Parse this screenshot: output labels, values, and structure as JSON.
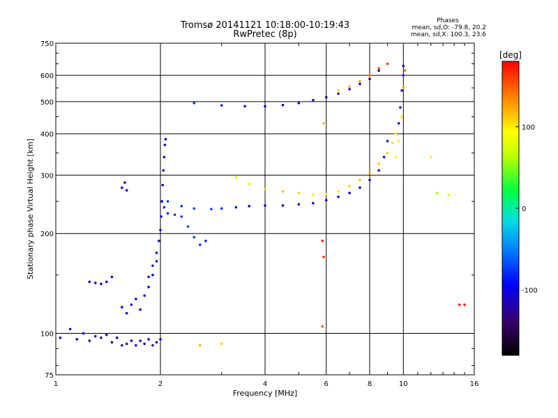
{
  "chart_data": {
    "type": "scatter",
    "title": "Tromsø 20141121 10:18:00-10:19:43",
    "subtitle": "RwPretec (8p)",
    "xlabel": "Frequency [MHz]",
    "ylabel": "Stationary phase Virtual Height [km]",
    "x_scale": "log",
    "y_scale": "log",
    "xlim": [
      1,
      16
    ],
    "ylim": [
      75,
      750
    ],
    "grid": true,
    "x_ticks": [
      1,
      2,
      4,
      6,
      8,
      10,
      16
    ],
    "x_tick_labels": [
      "1",
      "2",
      "4",
      "6",
      "8",
      "10",
      "16"
    ],
    "y_ticks": [
      75,
      100,
      200,
      300,
      400,
      500,
      600,
      750
    ],
    "y_tick_labels": [
      "75",
      "100",
      "200",
      "300",
      "400",
      "500",
      "600",
      "750"
    ],
    "phase_legend": {
      "title": "Phases",
      "line1": "mean, sd,O: -79.8, 20.2",
      "line2": "mean, sd,X: 100.3, 23.6"
    },
    "colorbar": {
      "label": "[deg]",
      "range": [
        -180,
        180
      ],
      "ticks": [
        100,
        0,
        -100
      ],
      "tick_labels": [
        "100",
        "0",
        "-100"
      ]
    },
    "series": [
      {
        "points": [
          [
            1.03,
            97,
            -120
          ],
          [
            1.1,
            103,
            -110
          ],
          [
            1.15,
            96,
            -115
          ],
          [
            1.2,
            100,
            -105
          ],
          [
            1.25,
            95,
            -125
          ],
          [
            1.3,
            98,
            -110
          ],
          [
            1.35,
            97,
            -120
          ],
          [
            1.4,
            99,
            -100
          ],
          [
            1.45,
            94,
            -130
          ],
          [
            1.5,
            97,
            -115
          ],
          [
            1.55,
            92,
            -120
          ],
          [
            1.6,
            93,
            -110
          ],
          [
            1.65,
            95,
            -125
          ],
          [
            1.7,
            92,
            -105
          ],
          [
            1.75,
            95,
            -118
          ],
          [
            1.8,
            93,
            -112
          ],
          [
            1.85,
            96,
            -108
          ],
          [
            1.9,
            92,
            -122
          ],
          [
            1.95,
            94,
            -115
          ],
          [
            2.0,
            96,
            -110
          ]
        ]
      },
      {
        "points": [
          [
            1.25,
            143,
            -105
          ],
          [
            1.3,
            142,
            -110
          ],
          [
            1.35,
            141,
            -108
          ],
          [
            1.4,
            143,
            -115
          ],
          [
            1.45,
            148,
            -112
          ],
          [
            1.55,
            120,
            -95
          ],
          [
            1.6,
            115,
            -100
          ],
          [
            1.65,
            122,
            -110
          ],
          [
            1.7,
            127,
            -100
          ],
          [
            1.75,
            118,
            -105
          ],
          [
            1.8,
            130,
            -98
          ],
          [
            1.85,
            138,
            -100
          ],
          [
            1.9,
            150,
            -95
          ],
          [
            1.95,
            165,
            -92
          ]
        ]
      },
      {
        "points": [
          [
            1.55,
            275,
            -110
          ],
          [
            1.58,
            285,
            -115
          ],
          [
            1.6,
            270,
            -105
          ]
        ]
      },
      {
        "points": [
          [
            1.85,
            148,
            -85
          ],
          [
            1.9,
            160,
            -88
          ],
          [
            1.95,
            175,
            -90
          ],
          [
            1.98,
            190,
            -92
          ],
          [
            2.0,
            205,
            -95
          ],
          [
            2.01,
            225,
            -98
          ],
          [
            2.02,
            250,
            -100
          ],
          [
            2.03,
            280,
            -102
          ],
          [
            2.04,
            310,
            -105
          ],
          [
            2.05,
            340,
            -108
          ],
          [
            2.06,
            370,
            -110
          ],
          [
            2.07,
            385,
            -112
          ]
        ]
      },
      {
        "points": [
          [
            2.05,
            240,
            -85
          ],
          [
            2.1,
            230,
            -80
          ],
          [
            2.2,
            228,
            -78
          ],
          [
            2.3,
            225,
            -75
          ],
          [
            2.4,
            210,
            -72
          ],
          [
            2.5,
            195,
            -75
          ],
          [
            2.6,
            185,
            -78
          ],
          [
            2.7,
            190,
            -80
          ]
        ]
      },
      {
        "points": [
          [
            2.1,
            250,
            -75
          ],
          [
            2.3,
            242,
            -72
          ],
          [
            2.5,
            238,
            -70
          ],
          [
            2.8,
            237,
            -73
          ],
          [
            3.0,
            238,
            -80
          ],
          [
            3.3,
            240,
            -95
          ],
          [
            3.6,
            242,
            -115
          ],
          [
            4.0,
            243,
            -120
          ],
          [
            4.5,
            243,
            -118
          ],
          [
            5.0,
            245,
            -115
          ],
          [
            5.5,
            247,
            -112
          ],
          [
            6.0,
            252,
            -110
          ],
          [
            6.5,
            258,
            -112
          ],
          [
            7.0,
            265,
            -115
          ],
          [
            7.5,
            275,
            -118
          ],
          [
            8.0,
            290,
            -112
          ],
          [
            8.5,
            310,
            -108
          ],
          [
            8.8,
            340,
            -105
          ],
          [
            9.0,
            380,
            -110
          ]
        ]
      },
      {
        "points": [
          [
            3.3,
            295,
            80
          ],
          [
            3.6,
            282,
            95
          ],
          [
            4.0,
            272,
            110
          ],
          [
            4.5,
            268,
            115
          ],
          [
            5.0,
            265,
            110
          ],
          [
            5.5,
            262,
            100
          ],
          [
            6.0,
            263,
            95
          ],
          [
            6.5,
            268,
            100
          ],
          [
            7.0,
            278,
            110
          ],
          [
            7.5,
            290,
            115
          ],
          [
            8.0,
            305,
            120
          ],
          [
            8.5,
            325,
            115
          ],
          [
            9.0,
            350,
            110
          ],
          [
            9.3,
            375,
            105
          ],
          [
            9.5,
            400,
            100
          ]
        ]
      },
      {
        "points": [
          [
            9.7,
            430,
            -110
          ],
          [
            9.8,
            480,
            -115
          ],
          [
            9.9,
            540,
            -120
          ],
          [
            10.0,
            600,
            -115
          ],
          [
            10.0,
            640,
            -110
          ]
        ]
      },
      {
        "points": [
          [
            9.5,
            340,
            90
          ],
          [
            9.7,
            380,
            100
          ],
          [
            9.9,
            450,
            110
          ],
          [
            10.0,
            550,
            120
          ],
          [
            10.1,
            620,
            140
          ]
        ]
      },
      {
        "points": [
          [
            2.5,
            495,
            -80
          ],
          [
            3.0,
            487,
            -85
          ],
          [
            3.5,
            484,
            -90
          ],
          [
            4.0,
            484,
            -95
          ],
          [
            4.5,
            488,
            -100
          ],
          [
            5.0,
            495,
            -105
          ],
          [
            5.5,
            505,
            -110
          ],
          [
            6.0,
            515,
            -115
          ],
          [
            6.5,
            528,
            -118
          ],
          [
            7.0,
            545,
            -115
          ],
          [
            7.5,
            565,
            -120
          ],
          [
            8.0,
            585,
            -118
          ],
          [
            8.5,
            620,
            -115
          ]
        ]
      },
      {
        "points": [
          [
            6.5,
            540,
            110
          ],
          [
            7.0,
            555,
            120
          ],
          [
            7.5,
            575,
            130
          ],
          [
            8.0,
            600,
            140
          ],
          [
            8.5,
            630,
            150
          ],
          [
            9.0,
            650,
            160
          ]
        ]
      },
      {
        "points": [
          [
            5.85,
            190,
            170
          ],
          [
            5.9,
            170,
            165
          ],
          [
            5.9,
            430,
            120
          ],
          [
            5.85,
            105,
            150
          ],
          [
            12.5,
            265,
            60
          ],
          [
            13.5,
            262,
            80
          ],
          [
            14.5,
            122,
            170
          ],
          [
            15.0,
            122,
            175
          ],
          [
            12.0,
            340,
            100
          ],
          [
            3.0,
            93,
            110
          ],
          [
            2.6,
            92,
            120
          ]
        ]
      }
    ]
  }
}
